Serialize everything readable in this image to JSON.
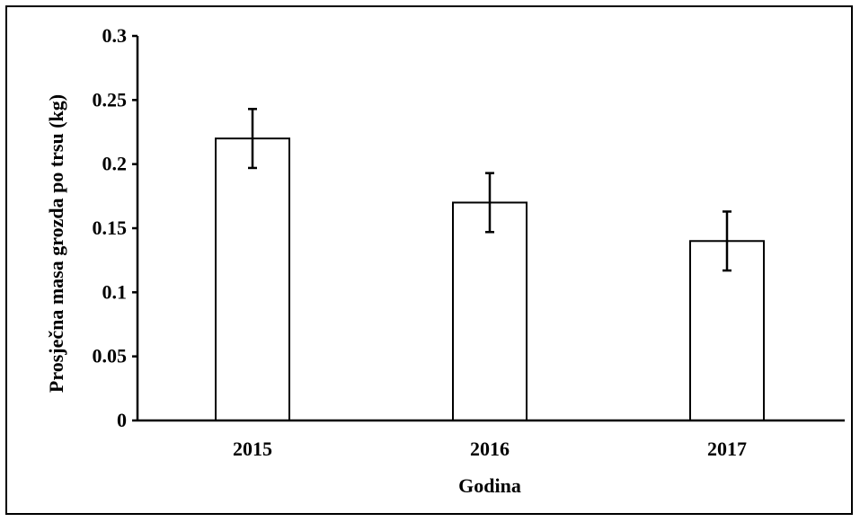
{
  "chart_data": {
    "type": "bar",
    "title": "",
    "xlabel": "Godina",
    "ylabel": "Prosječna masa grozda po trsu (kg)",
    "categories": [
      "2015",
      "2016",
      "2017"
    ],
    "values": [
      0.22,
      0.17,
      0.14
    ],
    "error": [
      0.023,
      0.023,
      0.023
    ],
    "ylim": [
      0,
      0.3
    ],
    "yticks": [
      "0",
      "0.05",
      "0.1",
      "0.15",
      "0.2",
      "0.25",
      "0.3"
    ],
    "grid": false,
    "legend": "none",
    "bar_fill": "#ffffff",
    "bar_stroke": "#000000"
  }
}
